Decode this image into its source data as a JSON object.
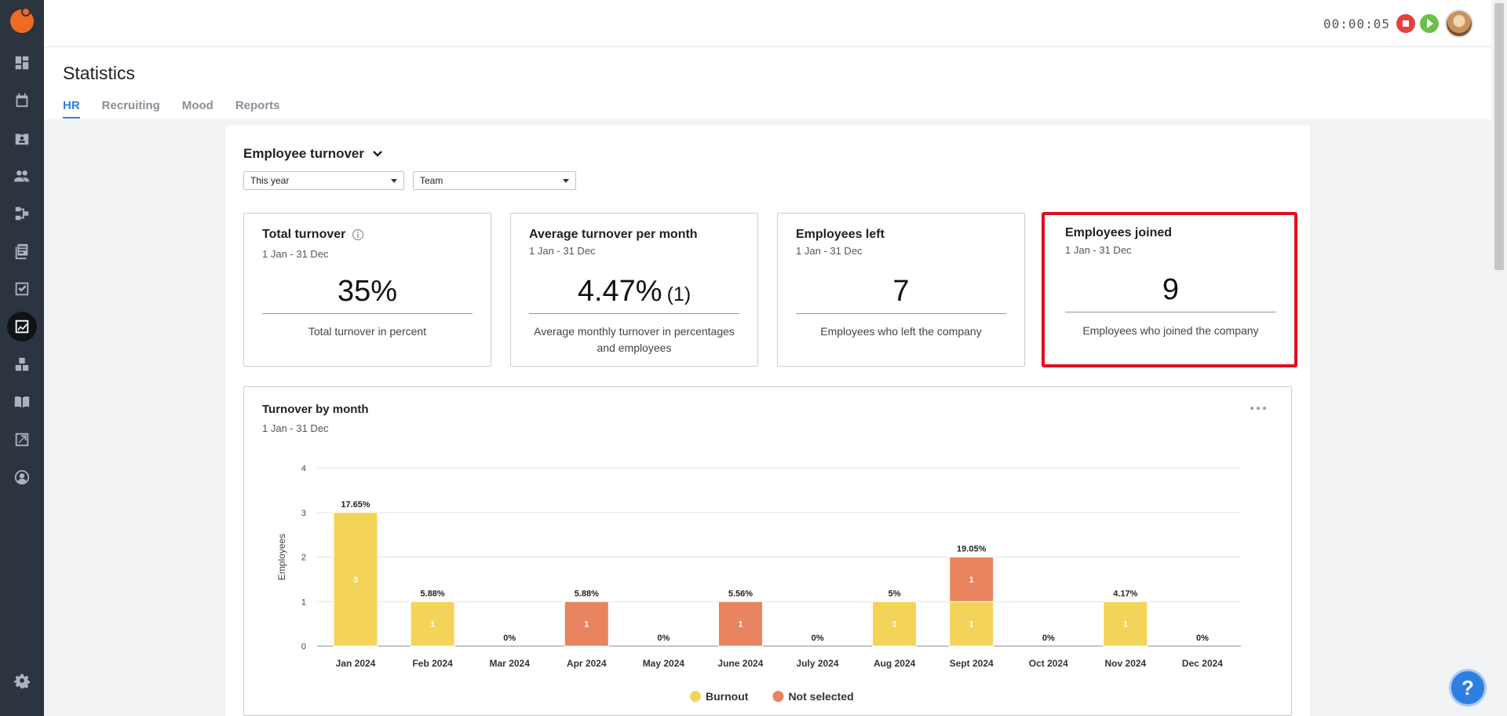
{
  "sidebar": {
    "icons": [
      "dashboard-icon",
      "calendar-icon",
      "badge-icon",
      "people-icon",
      "hierarchy-icon",
      "documents-icon",
      "checklist-icon",
      "statistics-icon",
      "boxes-icon",
      "book-icon",
      "reports-icon",
      "profile-icon",
      "settings-icon"
    ]
  },
  "topbar": {
    "timer": "00:00:05"
  },
  "page": {
    "title": "Statistics",
    "tabs": [
      {
        "label": "HR",
        "active": true
      },
      {
        "label": "Recruiting",
        "active": false
      },
      {
        "label": "Mood",
        "active": false
      },
      {
        "label": "Reports",
        "active": false
      }
    ]
  },
  "section": {
    "title": "Employee turnover",
    "period_select": "This year",
    "team_select": "Team"
  },
  "stats": [
    {
      "title": "Total turnover",
      "range": "1 Jan - 31 Dec",
      "value": "35%",
      "value_suffix": "",
      "desc": "Total turnover in percent"
    },
    {
      "title": "Average turnover per month",
      "range": "1 Jan - 31 Dec",
      "value": "4.47%",
      "value_suffix": "(1)",
      "desc": "Average monthly turnover in percentages and employees"
    },
    {
      "title": "Employees left",
      "range": "1 Jan - 31 Dec",
      "value": "7",
      "value_suffix": "",
      "desc": "Employees who left the company"
    },
    {
      "title": "Employees joined",
      "range": "1 Jan - 31 Dec",
      "value": "9",
      "value_suffix": "",
      "desc": "Employees who joined the company"
    }
  ],
  "chart_card": {
    "title": "Turnover by month",
    "range": "1 Jan - 31 Dec"
  },
  "chart_data": {
    "type": "bar",
    "stacked": true,
    "categories": [
      "Jan 2024",
      "Feb 2024",
      "Mar 2024",
      "Apr 2024",
      "May 2024",
      "June 2024",
      "July 2024",
      "Aug 2024",
      "Sept 2024",
      "Oct 2024",
      "Nov 2024",
      "Dec 2024"
    ],
    "series": [
      {
        "name": "Burnout",
        "color": "#f3d458",
        "values": [
          3,
          1,
          0,
          0,
          0,
          0,
          0,
          1,
          1,
          0,
          1,
          0
        ]
      },
      {
        "name": "Not selected",
        "color": "#e8845f",
        "values": [
          0,
          0,
          0,
          1,
          0,
          1,
          0,
          0,
          1,
          0,
          0,
          0
        ]
      }
    ],
    "top_labels": [
      "17.65%",
      "5.88%",
      "0%",
      "5.88%",
      "0%",
      "5.56%",
      "0%",
      "5%",
      "19.05%",
      "0%",
      "4.17%",
      "0%"
    ],
    "ylabel": "Employees",
    "ylim": [
      0,
      4
    ],
    "yticks": [
      "0",
      "1",
      "2",
      "3",
      "4"
    ],
    "grid": true,
    "legend_position": "bottom-center"
  },
  "colors": {
    "accent": "#2f7fe0",
    "highlight": "#e0101a"
  }
}
